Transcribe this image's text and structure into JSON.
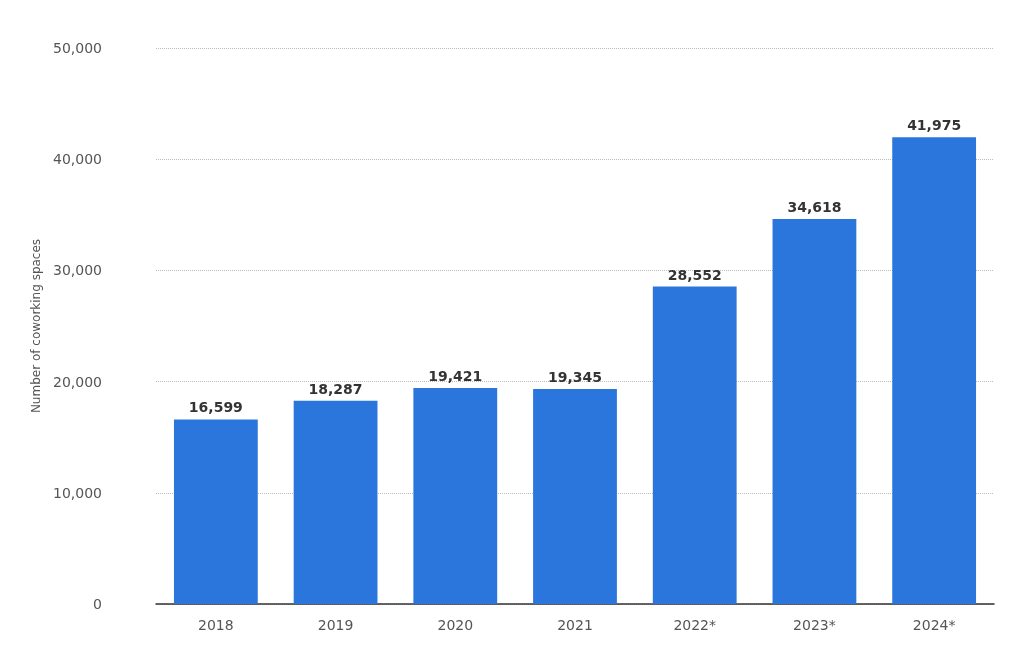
{
  "chart_data": {
    "type": "bar",
    "ylabel": "Number of coworking spaces",
    "categories": [
      "2018",
      "2019",
      "2020",
      "2021",
      "2022*",
      "2023*",
      "2024*"
    ],
    "values": [
      16599,
      18287,
      19421,
      19345,
      28552,
      34618,
      41975
    ],
    "value_labels": [
      "16,599",
      "18,287",
      "19,421",
      "19,345",
      "28,552",
      "34,618",
      "41,975"
    ],
    "color": "#2a76dd",
    "ylim": [
      0,
      50000
    ],
    "yticks": [
      0,
      {
        "value": 10000,
        "label": "10,000"
      },
      {
        "value": 20000,
        "label": "20,000"
      },
      {
        "value": 30000,
        "label": "30,000"
      },
      {
        "value": 40000,
        "label": "40,000"
      },
      {
        "value": 50000,
        "label": "50,000"
      }
    ],
    "grid": "y"
  }
}
